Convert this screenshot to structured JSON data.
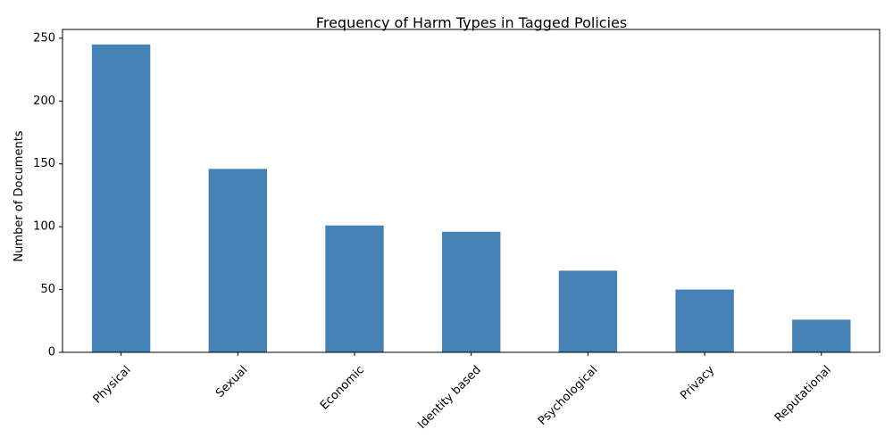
{
  "chart_data": {
    "type": "bar",
    "title": "Frequency of Harm Types in Tagged Policies",
    "xlabel": "",
    "ylabel": "Number of Documents",
    "categories": [
      "Physical",
      "Sexual",
      "Economic",
      "Identity based",
      "Psychological",
      "Privacy",
      "Reputational"
    ],
    "values": [
      245,
      146,
      101,
      96,
      65,
      50,
      26
    ],
    "ylim": [
      0,
      257
    ],
    "yticks": [
      0,
      50,
      100,
      150,
      200,
      250
    ],
    "grid": false,
    "legend": "none",
    "bar_color": "#4682b4"
  }
}
